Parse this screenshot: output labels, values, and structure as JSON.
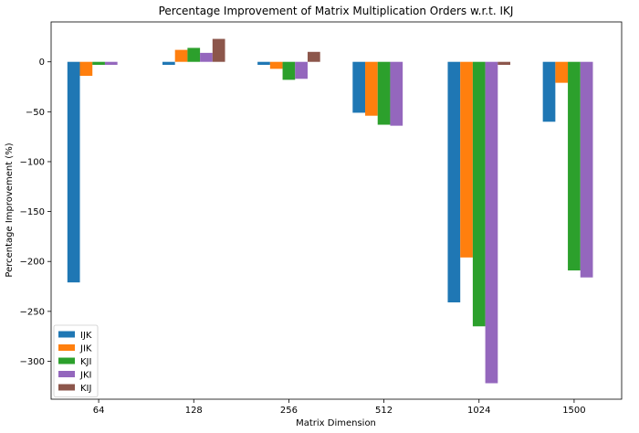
{
  "chart_data": {
    "type": "bar",
    "title": "Percentage Improvement of Matrix Multiplication Orders w.r.t. IKJ",
    "xlabel": "Matrix Dimension",
    "ylabel": "Percentage Improvement (%)",
    "categories": [
      "64",
      "128",
      "256",
      "512",
      "1024",
      "1500"
    ],
    "ylim": [
      -338,
      40
    ],
    "yticks": [
      0,
      -50,
      -100,
      -150,
      -200,
      -250,
      -300
    ],
    "ytick_labels": [
      "0",
      "−50",
      "−100",
      "−150",
      "−200",
      "−250",
      "−300"
    ],
    "legend_position": "lower-left",
    "grid": false,
    "series": [
      {
        "name": "IJK",
        "color": "#1f77b4",
        "values": [
          -221,
          -3,
          -3,
          -51,
          -241,
          -60
        ]
      },
      {
        "name": "JIK",
        "color": "#ff7f0e",
        "values": [
          -14,
          12,
          -7,
          -54,
          -196,
          -21
        ]
      },
      {
        "name": "KJI",
        "color": "#2ca02c",
        "values": [
          -3,
          14,
          -18,
          -63,
          -265,
          -209
        ]
      },
      {
        "name": "JKI",
        "color": "#9467bd",
        "values": [
          -3,
          9,
          -17,
          -64,
          -322,
          -216
        ]
      },
      {
        "name": "KIJ",
        "color": "#8c564b",
        "values": [
          0,
          23,
          10,
          0,
          -3,
          0
        ]
      }
    ]
  }
}
